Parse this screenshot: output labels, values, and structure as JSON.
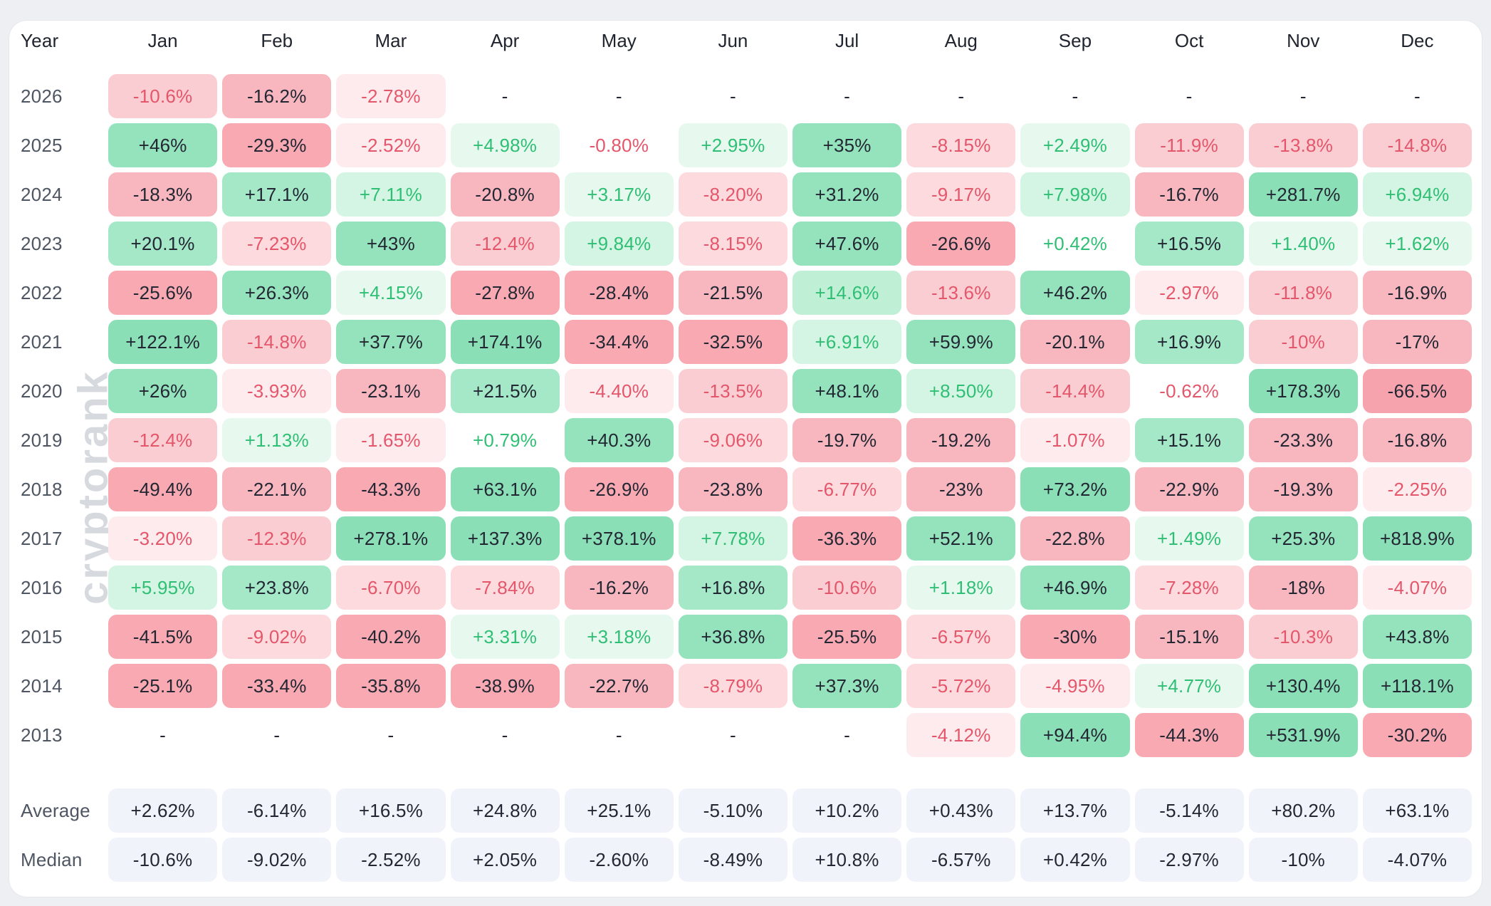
{
  "watermark": "cryptorank",
  "colors": {
    "pos_text": "#2fbf74",
    "neg_text": "#e4566a",
    "dark_text": "#222733",
    "summary_bg": "#f0f4fa",
    "thresholds": [
      1,
      5,
      10,
      15,
      25,
      60
    ],
    "green_bg": [
      "",
      "#e7f9ef",
      "#d4f5e3",
      "#bff0d6",
      "#a4e8c8",
      "#95e3bd",
      "#8bdfb7"
    ],
    "red_bg": [
      "",
      "#fdebee",
      "#fcdade",
      "#facdd3",
      "#f8b7bf",
      "#f8a9b2",
      "#f7a3ad"
    ]
  },
  "chart_data": {
    "type": "heatmap",
    "row_header": "Year",
    "columns": [
      "Jan",
      "Feb",
      "Mar",
      "Apr",
      "May",
      "Jun",
      "Jul",
      "Aug",
      "Sep",
      "Oct",
      "Nov",
      "Dec"
    ],
    "rows": [
      {
        "year": "2026",
        "values": [
          "-10.6%",
          "-16.2%",
          "-2.78%",
          "-",
          "-",
          "-",
          "-",
          "-",
          "-",
          "-",
          "-",
          "-"
        ]
      },
      {
        "year": "2025",
        "values": [
          "+46%",
          "-29.3%",
          "-2.52%",
          "+4.98%",
          "-0.80%",
          "+2.95%",
          "+35%",
          "-8.15%",
          "+2.49%",
          "-11.9%",
          "-13.8%",
          "-14.8%"
        ]
      },
      {
        "year": "2024",
        "values": [
          "-18.3%",
          "+17.1%",
          "+7.11%",
          "-20.8%",
          "+3.17%",
          "-8.20%",
          "+31.2%",
          "-9.17%",
          "+7.98%",
          "-16.7%",
          "+281.7%",
          "+6.94%"
        ]
      },
      {
        "year": "2023",
        "values": [
          "+20.1%",
          "-7.23%",
          "+43%",
          "-12.4%",
          "+9.84%",
          "-8.15%",
          "+47.6%",
          "-26.6%",
          "+0.42%",
          "+16.5%",
          "+1.40%",
          "+1.62%"
        ]
      },
      {
        "year": "2022",
        "values": [
          "-25.6%",
          "+26.3%",
          "+4.15%",
          "-27.8%",
          "-28.4%",
          "-21.5%",
          "+14.6%",
          "-13.6%",
          "+46.2%",
          "-2.97%",
          "-11.8%",
          "-16.9%"
        ]
      },
      {
        "year": "2021",
        "values": [
          "+122.1%",
          "-14.8%",
          "+37.7%",
          "+174.1%",
          "-34.4%",
          "-32.5%",
          "+6.91%",
          "+59.9%",
          "-20.1%",
          "+16.9%",
          "-10%",
          "-17%"
        ]
      },
      {
        "year": "2020",
        "values": [
          "+26%",
          "-3.93%",
          "-23.1%",
          "+21.5%",
          "-4.40%",
          "-13.5%",
          "+48.1%",
          "+8.50%",
          "-14.4%",
          "-0.62%",
          "+178.3%",
          "-66.5%"
        ]
      },
      {
        "year": "2019",
        "values": [
          "-12.4%",
          "+1.13%",
          "-1.65%",
          "+0.79%",
          "+40.3%",
          "-9.06%",
          "-19.7%",
          "-19.2%",
          "-1.07%",
          "+15.1%",
          "-23.3%",
          "-16.8%"
        ]
      },
      {
        "year": "2018",
        "values": [
          "-49.4%",
          "-22.1%",
          "-43.3%",
          "+63.1%",
          "-26.9%",
          "-23.8%",
          "-6.77%",
          "-23%",
          "+73.2%",
          "-22.9%",
          "-19.3%",
          "-2.25%"
        ]
      },
      {
        "year": "2017",
        "values": [
          "-3.20%",
          "-12.3%",
          "+278.1%",
          "+137.3%",
          "+378.1%",
          "+7.78%",
          "-36.3%",
          "+52.1%",
          "-22.8%",
          "+1.49%",
          "+25.3%",
          "+818.9%"
        ]
      },
      {
        "year": "2016",
        "values": [
          "+5.95%",
          "+23.8%",
          "-6.70%",
          "-7.84%",
          "-16.2%",
          "+16.8%",
          "-10.6%",
          "+1.18%",
          "+46.9%",
          "-7.28%",
          "-18%",
          "-4.07%"
        ]
      },
      {
        "year": "2015",
        "values": [
          "-41.5%",
          "-9.02%",
          "-40.2%",
          "+3.31%",
          "+3.18%",
          "+36.8%",
          "-25.5%",
          "-6.57%",
          "-30%",
          "-15.1%",
          "-10.3%",
          "+43.8%"
        ]
      },
      {
        "year": "2014",
        "values": [
          "-25.1%",
          "-33.4%",
          "-35.8%",
          "-38.9%",
          "-22.7%",
          "-8.79%",
          "+37.3%",
          "-5.72%",
          "-4.95%",
          "+4.77%",
          "+130.4%",
          "+118.1%"
        ]
      },
      {
        "year": "2013",
        "values": [
          "-",
          "-",
          "-",
          "-",
          "-",
          "-",
          "-",
          "-4.12%",
          "+94.4%",
          "-44.3%",
          "+531.9%",
          "-30.2%"
        ]
      }
    ],
    "summary_rows": [
      {
        "label": "Average",
        "values": [
          "+2.62%",
          "-6.14%",
          "+16.5%",
          "+24.8%",
          "+25.1%",
          "-5.10%",
          "+10.2%",
          "+0.43%",
          "+13.7%",
          "-5.14%",
          "+80.2%",
          "+63.1%"
        ]
      },
      {
        "label": "Median",
        "values": [
          "-10.6%",
          "-9.02%",
          "-2.52%",
          "+2.05%",
          "-2.60%",
          "-8.49%",
          "+10.8%",
          "-6.57%",
          "+0.42%",
          "-2.97%",
          "-10%",
          "-4.07%"
        ]
      }
    ]
  }
}
